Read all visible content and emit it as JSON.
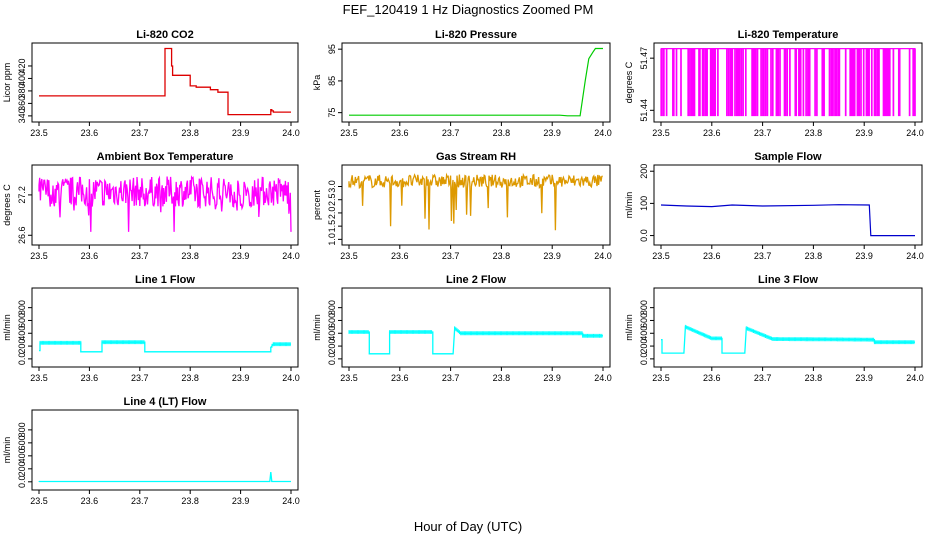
{
  "figure": {
    "title": "FEF_120419  1 Hz Diagnostics Zoomed PM",
    "xlabel": "Hour of Day (UTC)"
  },
  "chart_data": [
    {
      "type": "line",
      "title": "Li-820 CO2",
      "ylabel": "Licor ppm",
      "color": "#dd0000",
      "xlim": [
        23.5,
        24.0
      ],
      "ylim": [
        335,
        452
      ],
      "xticks": [
        23.5,
        23.6,
        23.7,
        23.8,
        23.9,
        24.0
      ],
      "yticks": [
        340,
        360,
        380,
        400,
        420
      ],
      "series": [
        {
          "x": [
            23.5,
            23.75,
            23.75,
            23.763,
            23.763,
            23.765,
            23.765,
            23.8,
            23.8,
            23.812,
            23.812,
            23.84,
            23.84,
            23.855,
            23.855,
            23.875,
            23.875,
            23.96,
            23.96,
            23.962,
            23.962,
            23.965,
            23.965,
            24.0
          ],
          "y": [
            372,
            372,
            448,
            448,
            420,
            420,
            405,
            405,
            388,
            388,
            386,
            386,
            382,
            382,
            378,
            378,
            342,
            342,
            350,
            350,
            348,
            348,
            346,
            346
          ]
        }
      ]
    },
    {
      "type": "line",
      "title": "Li-820 Pressure",
      "ylabel": "kPa",
      "color": "#00cc00",
      "xlim": [
        23.5,
        24.0
      ],
      "ylim": [
        73,
        96
      ],
      "xticks": [
        23.5,
        23.6,
        23.7,
        23.8,
        23.9,
        24.0
      ],
      "yticks": [
        75,
        85,
        95
      ],
      "series": [
        {
          "x": [
            23.5,
            23.915,
            23.93,
            23.955,
            23.965,
            23.972,
            23.98,
            23.985,
            24.0
          ],
          "y": [
            74.2,
            74.2,
            74.0,
            74.0,
            85,
            92,
            94,
            95.2,
            95.2
          ]
        }
      ]
    },
    {
      "type": "line",
      "title": "Li-820 Temperature",
      "ylabel": "degrees C",
      "color": "#ff00ff",
      "xlim": [
        23.5,
        24.0
      ],
      "ylim": [
        51.435,
        51.477
      ],
      "xticks": [
        23.5,
        23.6,
        23.7,
        23.8,
        23.9,
        24.0
      ],
      "yticks": [
        51.44,
        51.47
      ],
      "series": [
        {
          "x": [
            23.5,
            24.0
          ],
          "y": [
            51.437,
            51.4755
          ]
        }
      ]
    },
    {
      "type": "line",
      "title": "Ambient Box Temperature",
      "ylabel": "degrees C",
      "color": "#ff00ff",
      "xlim": [
        23.5,
        24.0
      ],
      "ylim": [
        26.5,
        27.6
      ],
      "xticks": [
        23.5,
        23.6,
        23.7,
        23.8,
        23.9,
        24.0
      ],
      "yticks": [
        26.6,
        27.2
      ],
      "series": [
        {
          "x": [
            23.5,
            24.0
          ],
          "y": [
            26.65,
            27.55
          ]
        }
      ]
    },
    {
      "type": "line",
      "title": "Gas Stream RH",
      "ylabel": "percent",
      "color": "#dd9900",
      "xlim": [
        23.5,
        24.0
      ],
      "ylim": [
        0.9,
        3.7
      ],
      "xticks": [
        23.5,
        23.6,
        23.7,
        23.8,
        23.9,
        24.0
      ],
      "yticks": [
        1.0,
        1.5,
        2.0,
        2.5,
        3.0
      ],
      "series": [
        {
          "x": [
            23.5,
            24.0
          ],
          "y": [
            1.0,
            3.6
          ]
        }
      ]
    },
    {
      "type": "line",
      "title": "Sample Flow",
      "ylabel": "ml/min",
      "color": "#0000cc",
      "xlim": [
        23.5,
        24.0
      ],
      "ylim": [
        -20,
        210
      ],
      "xticks": [
        23.5,
        23.6,
        23.7,
        23.8,
        23.9,
        24.0
      ],
      "yticks": [
        0,
        100,
        200
      ],
      "series": [
        {
          "x": [
            23.5,
            23.55,
            23.6,
            23.64,
            23.7,
            23.8,
            23.85,
            23.91,
            23.913,
            24.0
          ],
          "y": [
            95,
            92,
            90,
            95,
            92,
            94,
            96,
            95,
            0,
            0
          ]
        }
      ]
    },
    {
      "type": "line",
      "title": "Line 1 Flow",
      "ylabel": "ml/min",
      "color": "#00ffff",
      "xlim": [
        23.5,
        24.0
      ],
      "ylim": [
        -80,
        1060
      ],
      "xticks": [
        23.5,
        23.6,
        23.7,
        23.8,
        23.9,
        24.0
      ],
      "yticks": [
        0,
        200,
        400,
        600,
        800
      ],
      "series": [
        {
          "x": [
            23.5,
            23.502,
            23.502,
            23.583,
            23.583,
            23.625,
            23.625,
            23.71,
            23.71,
            23.96,
            23.96,
            23.965,
            24.0
          ],
          "y": [
            130,
            130,
            250,
            250,
            110,
            110,
            260,
            260,
            110,
            110,
            180,
            230,
            230
          ]
        }
      ]
    },
    {
      "type": "line",
      "title": "Line 2 Flow",
      "ylabel": "ml/min",
      "color": "#00ffff",
      "xlim": [
        23.5,
        24.0
      ],
      "ylim": [
        -80,
        1060
      ],
      "xticks": [
        23.5,
        23.6,
        23.7,
        23.8,
        23.9,
        24.0
      ],
      "yticks": [
        0,
        200,
        400,
        600,
        800
      ],
      "series": [
        {
          "x": [
            23.5,
            23.54,
            23.54,
            23.58,
            23.58,
            23.665,
            23.665,
            23.705,
            23.708,
            23.72,
            23.96,
            23.96,
            24.0
          ],
          "y": [
            420,
            420,
            80,
            80,
            420,
            420,
            80,
            80,
            480,
            400,
            400,
            360,
            360
          ]
        }
      ]
    },
    {
      "type": "line",
      "title": "Line 3 Flow",
      "ylabel": "ml/min",
      "color": "#00ffff",
      "xlim": [
        23.5,
        24.0
      ],
      "ylim": [
        -80,
        1060
      ],
      "xticks": [
        23.5,
        23.6,
        23.7,
        23.8,
        23.9,
        24.0
      ],
      "yticks": [
        0,
        200,
        400,
        600,
        800
      ],
      "series": [
        {
          "x": [
            23.5,
            23.502,
            23.502,
            23.545,
            23.548,
            23.6,
            23.62,
            23.62,
            23.665,
            23.668,
            23.72,
            23.92,
            23.92,
            24.0
          ],
          "y": [
            300,
            300,
            90,
            90,
            500,
            320,
            320,
            90,
            90,
            480,
            310,
            300,
            260,
            260
          ]
        }
      ]
    },
    {
      "type": "line",
      "title": "Line 4 (LT) Flow",
      "ylabel": "ml/min",
      "color": "#00ffff",
      "xlim": [
        23.5,
        24.0
      ],
      "ylim": [
        -80,
        1060
      ],
      "xticks": [
        23.5,
        23.6,
        23.7,
        23.8,
        23.9,
        24.0
      ],
      "yticks": [
        0,
        200,
        400,
        600,
        800
      ],
      "series": [
        {
          "x": [
            23.5,
            23.958,
            23.96,
            23.962,
            24.0
          ],
          "y": [
            5,
            5,
            150,
            5,
            5
          ]
        }
      ]
    }
  ]
}
